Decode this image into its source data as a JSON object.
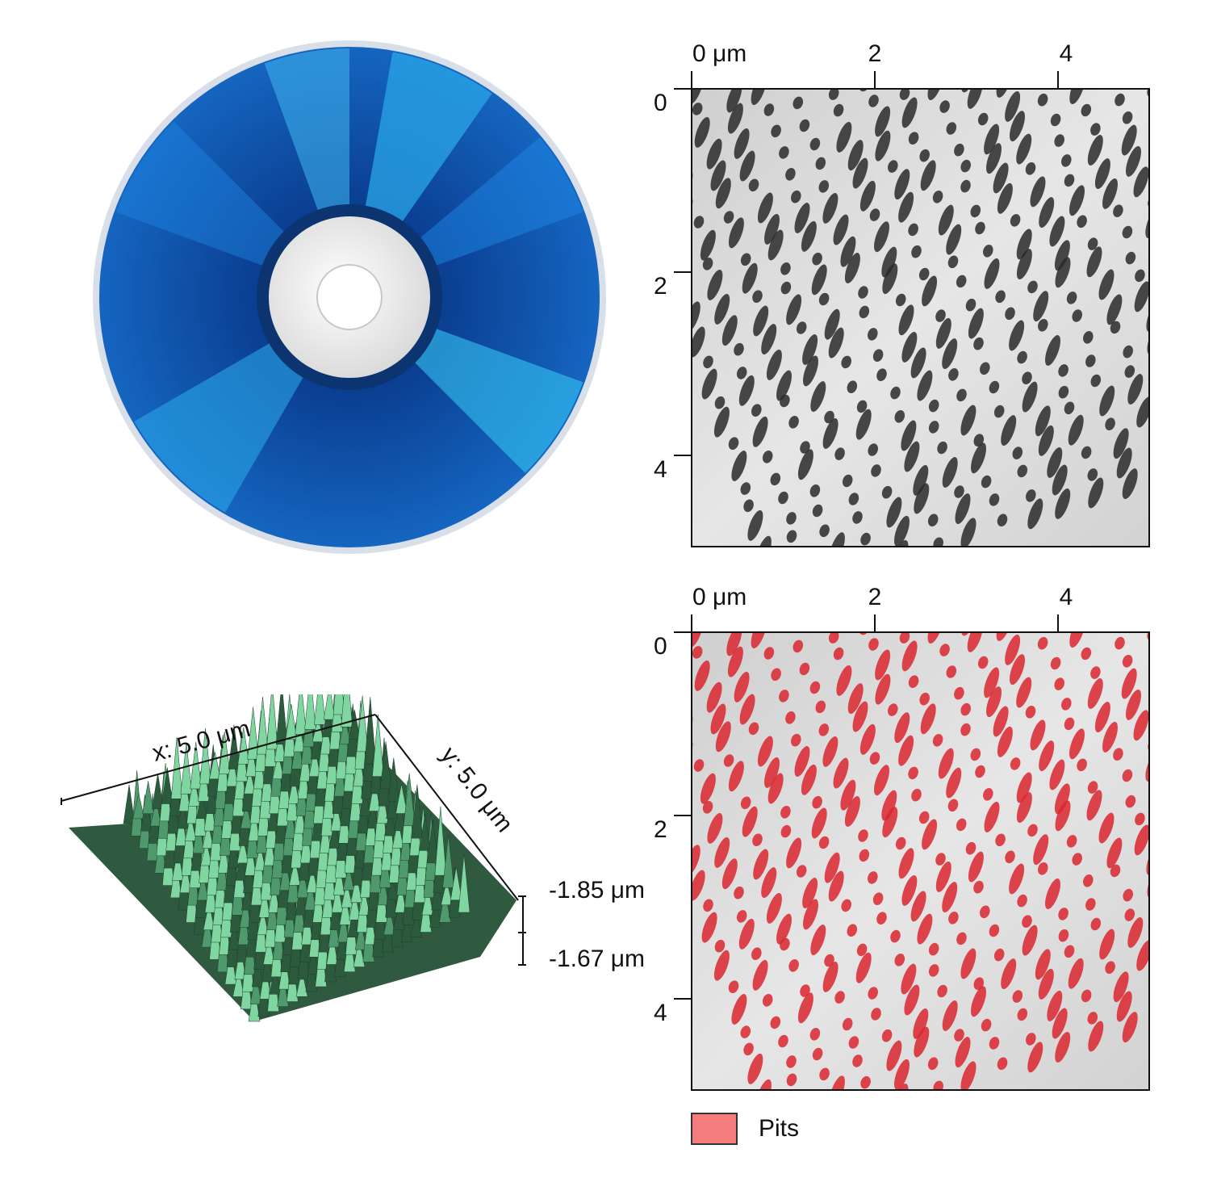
{
  "afm_top": {
    "x_ticks": [
      "0 μm",
      "2",
      "4"
    ],
    "y_ticks": [
      "0",
      "2",
      "4"
    ]
  },
  "afm_bottom": {
    "x_ticks": [
      "0 μm",
      "2",
      "4"
    ],
    "y_ticks": [
      "0",
      "2",
      "4"
    ]
  },
  "surface_3d": {
    "x_label": "x: 5.0 μm",
    "y_label": "y: 5.0 μm",
    "z_top_label": "-1.85 μm",
    "z_bottom_label": "-1.67 μm",
    "surface_color": "#6fbf8f"
  },
  "legend": {
    "label": "Pits",
    "color": "#f47c7c"
  },
  "disc": {
    "icon": "optical-disc-icon",
    "color": "#1565c0"
  }
}
